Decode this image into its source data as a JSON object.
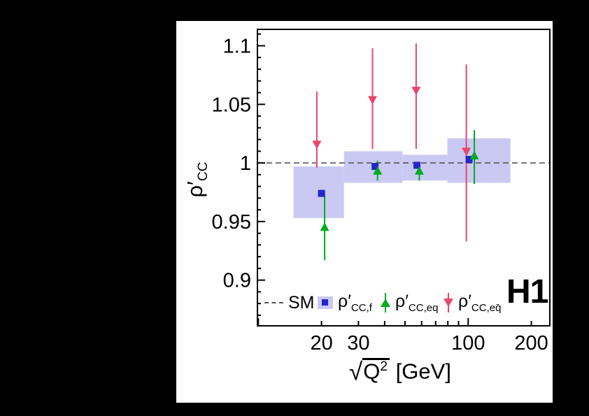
{
  "figure": {
    "background": "#000000",
    "panel_background": "#ffffff"
  },
  "labels": {
    "experiment": "H1",
    "ylabel_main": "ρ′",
    "ylabel_sub": "CC",
    "xlabel_radical": "√",
    "xlabel_base": "Q",
    "xlabel_exp": "2",
    "xlabel_unit": " [GeV]"
  },
  "legend": {
    "items": [
      {
        "main": "SM",
        "sub": ""
      },
      {
        "main": "ρ′",
        "sub": "CC,f"
      },
      {
        "main": "ρ′",
        "sub": "CC,eq"
      },
      {
        "main": "ρ′",
        "sub": "CC,eq̄"
      }
    ]
  },
  "chart_data": {
    "type": "scatter",
    "title": "",
    "xlabel": "√Q² [GeV]",
    "ylabel": "ρ′_CC",
    "xscale": "log",
    "xlim": [
      9.9,
      245
    ],
    "ylim": [
      0.861,
      1.114
    ],
    "grid": false,
    "legend_position": "bottom-inside",
    "sm_line_y": 1.0,
    "colors": {
      "band": "#c9c9f3",
      "square": "#2525cc",
      "triangle_up": "#00aa22",
      "triangle_down": "#e8476b",
      "sm": "#555555",
      "frame": "#000000"
    },
    "xticks": [
      {
        "v": 10,
        "len": 11
      },
      {
        "v": 20,
        "len": 7,
        "label": "20"
      },
      {
        "v": 30,
        "len": 7,
        "label": "30"
      },
      {
        "v": 40,
        "len": 7
      },
      {
        "v": 50,
        "len": 7
      },
      {
        "v": 60,
        "len": 7
      },
      {
        "v": 70,
        "len": 7
      },
      {
        "v": 80,
        "len": 7
      },
      {
        "v": 90,
        "len": 7
      },
      {
        "v": 100,
        "len": 11,
        "label": "100"
      },
      {
        "v": 200,
        "len": 7,
        "label": "200"
      }
    ],
    "ytick_range_hundredths": [
      87,
      111
    ],
    "ytick_labels": {
      "90": "0.9",
      "95": "0.95",
      "100": "1",
      "105": "1.05",
      "110": "1.1"
    },
    "bands": [
      {
        "x0": 14.7,
        "x1": 25.6,
        "y0": 0.953,
        "y1": 0.997
      },
      {
        "x0": 25.6,
        "x1": 48.6,
        "y0": 0.983,
        "y1": 1.01
      },
      {
        "x0": 48.6,
        "x1": 79.6,
        "y0": 0.985,
        "y1": 1.007
      },
      {
        "x0": 79.6,
        "x1": 159.0,
        "y0": 0.983,
        "y1": 1.021
      }
    ],
    "series": [
      {
        "name": "ρ′_CC,f",
        "marker": "square",
        "color_key": "square",
        "points": [
          {
            "x": 20,
            "y": 0.974
          },
          {
            "x": 36,
            "y": 0.997
          },
          {
            "x": 57,
            "y": 0.998
          },
          {
            "x": 101,
            "y": 1.003
          }
        ]
      },
      {
        "name": "ρ′_CC,eq",
        "marker": "triangle-up",
        "color_key": "triangle_up",
        "points": [
          {
            "x": 20.7,
            "y": 0.945,
            "err_hi": 0.028,
            "err_lo": 0.028
          },
          {
            "x": 37,
            "y": 0.993,
            "err_hi": 0.009,
            "err_lo": 0.008
          },
          {
            "x": 58.5,
            "y": 0.993,
            "err_hi": 0.008,
            "err_lo": 0.008
          },
          {
            "x": 107,
            "y": 1.006,
            "err_hi": 0.022,
            "err_lo": 0.024
          }
        ]
      },
      {
        "name": "ρ′_CC,eq̄",
        "marker": "triangle-down",
        "color_key": "triangle_down",
        "points": [
          {
            "x": 19,
            "y": 1.016,
            "err_hi": 0.045,
            "err_lo": 0.02
          },
          {
            "x": 35,
            "y": 1.054,
            "err_hi": 0.044,
            "err_lo": 0.042
          },
          {
            "x": 56.5,
            "y": 1.062,
            "err_hi": 0.04,
            "err_lo": 0.05
          },
          {
            "x": 98,
            "y": 1.01,
            "err_hi": 0.074,
            "err_lo": 0.077
          }
        ]
      }
    ]
  }
}
